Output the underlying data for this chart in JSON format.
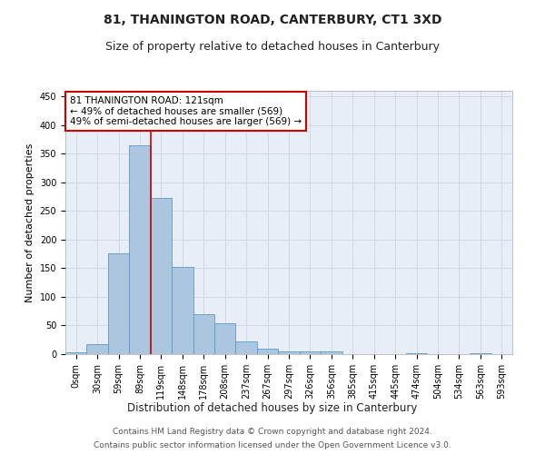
{
  "title": "81, THANINGTON ROAD, CANTERBURY, CT1 3XD",
  "subtitle": "Size of property relative to detached houses in Canterbury",
  "xlabel": "Distribution of detached houses by size in Canterbury",
  "ylabel": "Number of detached properties",
  "bar_labels": [
    "0sqm",
    "30sqm",
    "59sqm",
    "89sqm",
    "119sqm",
    "148sqm",
    "178sqm",
    "208sqm",
    "237sqm",
    "267sqm",
    "297sqm",
    "326sqm",
    "356sqm",
    "385sqm",
    "415sqm",
    "445sqm",
    "474sqm",
    "504sqm",
    "534sqm",
    "563sqm",
    "593sqm"
  ],
  "bar_values": [
    3,
    17,
    176,
    365,
    273,
    152,
    70,
    54,
    22,
    9,
    5,
    5,
    5,
    0,
    0,
    0,
    1,
    0,
    0,
    1,
    0
  ],
  "bar_color": "#adc6e0",
  "bar_edge_color": "#5a9ac5",
  "vline_x": 4.0,
  "annotation_line1": "81 THANINGTON ROAD: 121sqm",
  "annotation_line2": "← 49% of detached houses are smaller (569)",
  "annotation_line3": "49% of semi-detached houses are larger (569) →",
  "annotation_box_color": "#ffffff",
  "annotation_box_edge": "#cc0000",
  "vline_color": "#cc0000",
  "ylim": [
    0,
    460
  ],
  "yticks": [
    0,
    50,
    100,
    150,
    200,
    250,
    300,
    350,
    400,
    450
  ],
  "grid_color": "#d0d8e8",
  "bg_color": "#e8eef8",
  "footer_line1": "Contains HM Land Registry data © Crown copyright and database right 2024.",
  "footer_line2": "Contains public sector information licensed under the Open Government Licence v3.0.",
  "title_fontsize": 10,
  "subtitle_fontsize": 9,
  "ylabel_fontsize": 8,
  "xlabel_fontsize": 8.5,
  "tick_fontsize": 7,
  "annot_fontsize": 7.5,
  "footer_fontsize": 6.5
}
